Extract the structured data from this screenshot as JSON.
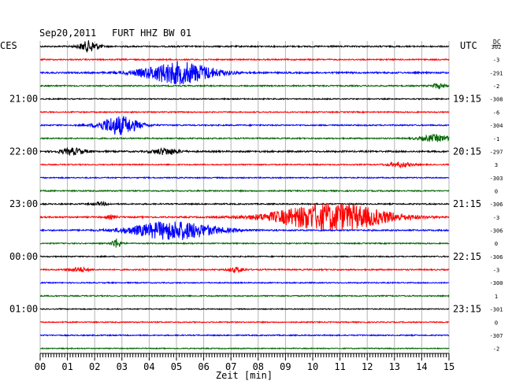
{
  "header": {
    "date": "Sep20,2011",
    "station": "FURT HHZ BW 01",
    "left_zone": "CES",
    "right_zone": "UTC",
    "dc_label": "DC"
  },
  "chart_data": {
    "type": "line",
    "title": "Sep20,2011   FURT HHZ BW 01",
    "xlabel": "Zeit [min]",
    "xlim": [
      0,
      15
    ],
    "x_ticks": [
      "00",
      "01",
      "02",
      "03",
      "04",
      "05",
      "06",
      "07",
      "08",
      "09",
      "10",
      "11",
      "12",
      "13",
      "14",
      "15"
    ],
    "grid": true,
    "trace_colors": [
      "#000000",
      "#ff0000",
      "#0000ff",
      "#006400"
    ],
    "left_time_labels": [
      {
        "row": 4,
        "label": "21:00"
      },
      {
        "row": 8,
        "label": "22:00"
      },
      {
        "row": 12,
        "label": "23:00"
      },
      {
        "row": 16,
        "label": "00:00"
      },
      {
        "row": 20,
        "label": "01:00"
      }
    ],
    "right_time_labels": [
      {
        "row": 4,
        "label": "19:15"
      },
      {
        "row": 8,
        "label": "20:15"
      },
      {
        "row": 12,
        "label": "21:15"
      },
      {
        "row": 16,
        "label": "22:15"
      },
      {
        "row": 20,
        "label": "23:15"
      }
    ],
    "dc_offsets": [
      "302",
      "-3",
      "-291",
      "-2",
      "-308",
      "-6",
      "-304",
      "-1",
      "-297",
      "3",
      "-303",
      "0",
      "-306",
      "-3",
      "-306",
      "0",
      "-306",
      "-3",
      "-300",
      "1",
      "-301",
      "0",
      "-307",
      "-2"
    ],
    "traces": [
      {
        "row": 0,
        "noise": 0.9,
        "events": [
          {
            "t": 1.8,
            "amp": 7,
            "dur": 0.6
          }
        ]
      },
      {
        "row": 1,
        "noise": 0.8,
        "events": []
      },
      {
        "row": 2,
        "noise": 1.0,
        "events": [
          {
            "t": 5.1,
            "amp": 14,
            "dur": 2.2
          }
        ]
      },
      {
        "row": 3,
        "noise": 0.8,
        "events": [
          {
            "t": 14.6,
            "amp": 3,
            "dur": 0.4
          }
        ]
      },
      {
        "row": 4,
        "noise": 0.7,
        "events": []
      },
      {
        "row": 5,
        "noise": 0.7,
        "events": []
      },
      {
        "row": 6,
        "noise": 0.8,
        "events": [
          {
            "t": 2.9,
            "amp": 12,
            "dur": 1.2
          }
        ]
      },
      {
        "row": 7,
        "noise": 0.8,
        "events": [
          {
            "t": 14.5,
            "amp": 4,
            "dur": 1.0
          }
        ]
      },
      {
        "row": 8,
        "noise": 1.0,
        "events": [
          {
            "t": 1.2,
            "amp": 4,
            "dur": 0.8
          },
          {
            "t": 4.6,
            "amp": 4,
            "dur": 0.8
          }
        ]
      },
      {
        "row": 9,
        "noise": 0.7,
        "events": [
          {
            "t": 13.2,
            "amp": 3,
            "dur": 0.8
          }
        ]
      },
      {
        "row": 10,
        "noise": 0.7,
        "events": []
      },
      {
        "row": 11,
        "noise": 0.8,
        "events": []
      },
      {
        "row": 12,
        "noise": 0.8,
        "events": [
          {
            "t": 2.2,
            "amp": 2,
            "dur": 0.5
          }
        ]
      },
      {
        "row": 13,
        "noise": 0.9,
        "events": [
          {
            "t": 10.7,
            "amp": 18,
            "dur": 3.5
          },
          {
            "t": 2.6,
            "amp": 2,
            "dur": 0.4
          }
        ]
      },
      {
        "row": 14,
        "noise": 0.9,
        "events": [
          {
            "t": 4.9,
            "amp": 12,
            "dur": 2.6
          }
        ]
      },
      {
        "row": 15,
        "noise": 0.7,
        "events": [
          {
            "t": 2.8,
            "amp": 6,
            "dur": 0.3
          }
        ]
      },
      {
        "row": 16,
        "noise": 0.7,
        "events": []
      },
      {
        "row": 17,
        "noise": 0.8,
        "events": [
          {
            "t": 1.4,
            "amp": 3,
            "dur": 0.6
          },
          {
            "t": 7.2,
            "amp": 3,
            "dur": 0.5
          }
        ]
      },
      {
        "row": 18,
        "noise": 0.7,
        "events": []
      },
      {
        "row": 19,
        "noise": 0.7,
        "events": []
      },
      {
        "row": 20,
        "noise": 0.6,
        "events": []
      },
      {
        "row": 21,
        "noise": 0.7,
        "events": []
      },
      {
        "row": 22,
        "noise": 0.7,
        "events": []
      },
      {
        "row": 23,
        "noise": 0.6,
        "events": []
      }
    ]
  }
}
